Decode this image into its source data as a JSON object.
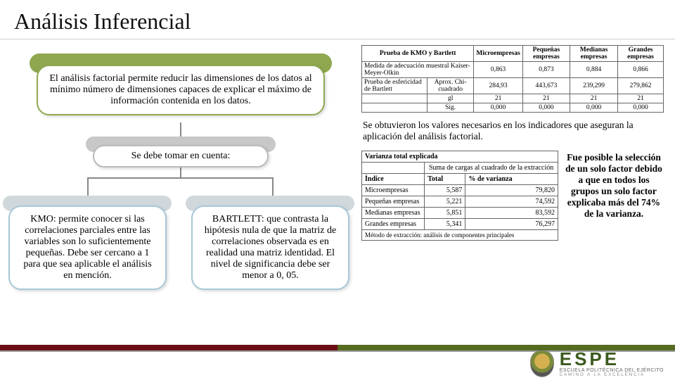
{
  "title": "Análisis Inferencial",
  "flow": {
    "top": "El análisis factorial permite reducir las dimensiones de los datos al mínimo número de dimensiones capaces de explicar el máximo de información contenida en los datos.",
    "mid": "Se debe tomar en cuenta:",
    "kmo": "KMO: permite conocer si las correlaciones parciales entre las variables son lo suficientemente pequeñas. Debe ser cercano a 1 para que sea aplicable el análisis en mención.",
    "bartlett": "BARTLETT: que contrasta la hipótesis nula de que la matriz de correlaciones observada es en realidad una matriz identidad. El nivel de significancia debe ser menor a 0, 05."
  },
  "caption1": "Se obtuvieron los valores necesarios en los indicadores que aseguran la aplicación del análisis factorial.",
  "caption2": "Fue posible la selección de un solo factor debido a que en todos los grupos un solo factor explicaba más del 74% de la varianza.",
  "tbl1": {
    "headers": [
      "Prueba de KMO y Bartlett",
      "Microempresas",
      "Pequeñas empresas",
      "Medianas empresas",
      "Grandes empresas"
    ],
    "rows": [
      [
        "Medida de adecuación muestral Kaiser-Meyer-Olkin",
        "",
        "0,863",
        "0,873",
        "0,884",
        "0,866"
      ],
      [
        "Prueba de esfericidad de Bartlett",
        "Aprox. Chi-cuadrado",
        "284,93",
        "443,673",
        "239,299",
        "279,862"
      ],
      [
        "",
        "gl",
        "21",
        "21",
        "21",
        "21"
      ],
      [
        "",
        "Sig.",
        "0,000",
        "0,000",
        "0,000",
        "0,000"
      ]
    ]
  },
  "tbl2": {
    "title": "Varianza total explicada",
    "subhead": "Suma de cargas al cuadrado de la extracción",
    "cols": [
      "Índice",
      "Total",
      "% de varianza"
    ],
    "rows": [
      [
        "Microempresas",
        "5,587",
        "79,820"
      ],
      [
        "Pequeñas empresas",
        "5,221",
        "74,592"
      ],
      [
        "Medianas empresas",
        "5,851",
        "83,592"
      ],
      [
        "Grandes empresas",
        "5,341",
        "76,297"
      ]
    ],
    "footnote": "Método de extracción: análisis de componentes principales"
  },
  "logo": {
    "big": "ESPE",
    "sub": "ESCUELA POLITÉCNICA DEL EJÉRCITO",
    "tag": "CAMINO A LA EXCELENCIA"
  }
}
